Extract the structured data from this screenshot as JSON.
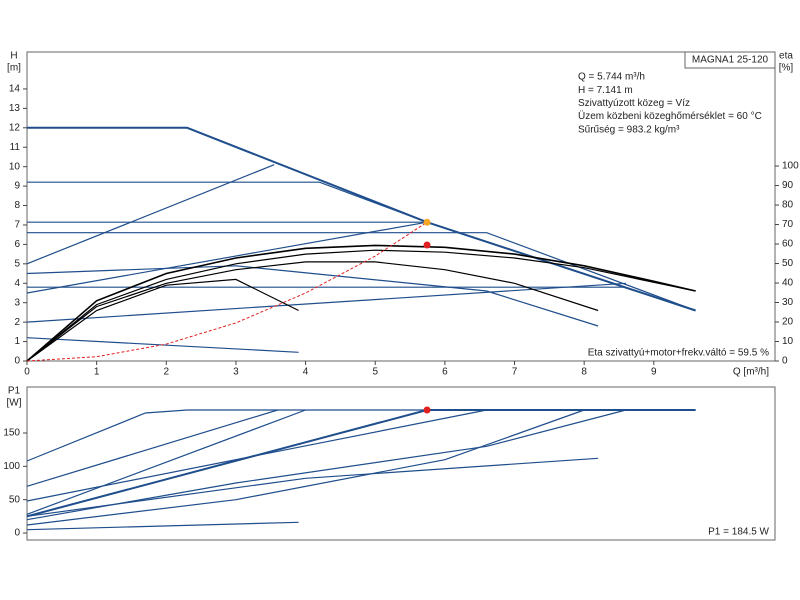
{
  "chart_data": [
    {
      "type": "line",
      "ylabel": [
        "H",
        "[m]"
      ],
      "y2label": [
        "eta",
        "[%]"
      ],
      "xlabel": "Q [m³/h]",
      "box_label": "MAGNA1 25-120",
      "info": [
        "Q = 5.744 m³/h",
        "H = 7.141 m",
        "Szivattyúzott közeg = Víz",
        "Üzem közbeni közeghőmérséklet = 60 °C",
        "Sűrűség = 983.2 kg/m³"
      ],
      "note": "Eta szivattyú+motor+frekv.váltó = 59.5 %",
      "xlim": [
        0,
        10.74
      ],
      "xticks": [
        0,
        1,
        2,
        3,
        4,
        5,
        6,
        7,
        8,
        9
      ],
      "ylim": [
        0,
        15.9
      ],
      "yticks": [
        0,
        1,
        2,
        3,
        4,
        5,
        6,
        7,
        8,
        9,
        10,
        11,
        12,
        13,
        14
      ],
      "y2lim": [
        0,
        158.5
      ],
      "y2ticks": [
        0,
        10,
        20,
        30,
        40,
        50,
        60,
        70,
        80,
        90,
        100
      ],
      "series": [
        {
          "color": "#1f4e8c",
          "width": 2,
          "x": [
            0,
            2.3,
            5.744,
            9.6
          ],
          "values": [
            12,
            12,
            7.141,
            2.6
          ]
        },
        {
          "color": "#1f4e8c",
          "width": 1.2,
          "x": [
            0,
            4.2,
            5.744
          ],
          "values": [
            9.2,
            9.2,
            7.141
          ]
        },
        {
          "color": "#1f4e8c",
          "width": 1.2,
          "x": [
            0,
            5.744
          ],
          "values": [
            7.141,
            7.141
          ]
        },
        {
          "color": "#1f4e8c",
          "width": 1.2,
          "x": [
            0,
            6.6,
            9.6
          ],
          "values": [
            6.6,
            6.6,
            2.6
          ]
        },
        {
          "color": "#1f4e8c",
          "width": 1.2,
          "x": [
            0,
            3.55
          ],
          "values": [
            5,
            10.1
          ]
        },
        {
          "color": "#1f4e8c",
          "width": 1.2,
          "x": [
            0,
            5.744
          ],
          "values": [
            3.5,
            7.141
          ]
        },
        {
          "color": "#1f4e8c",
          "width": 1.2,
          "x": [
            0,
            3,
            6.6,
            8.2
          ],
          "values": [
            4.5,
            4.9,
            3.6,
            1.8
          ]
        },
        {
          "color": "#1f4e8c",
          "width": 1.2,
          "x": [
            0,
            8.6
          ],
          "values": [
            3.8,
            3.8
          ]
        },
        {
          "color": "#1f4e8c",
          "width": 1.2,
          "x": [
            0,
            8.6
          ],
          "values": [
            2,
            4
          ]
        },
        {
          "color": "#1f4e8c",
          "width": 1.2,
          "x": [
            0,
            3.9
          ],
          "values": [
            1.2,
            0.45
          ]
        },
        {
          "color": "#000000",
          "width": 1.6,
          "x": [
            0,
            1,
            2,
            3,
            4,
            5,
            6,
            7,
            8,
            9,
            9.6
          ],
          "values": [
            0,
            3.1,
            4.5,
            5.3,
            5.8,
            5.95,
            5.85,
            5.5,
            4.9,
            4.1,
            3.6
          ]
        },
        {
          "color": "#000000",
          "width": 1.2,
          "x": [
            0,
            1,
            2,
            3,
            4,
            5,
            6,
            7,
            8,
            9.6
          ],
          "values": [
            0,
            2.9,
            4.2,
            5.0,
            5.5,
            5.7,
            5.6,
            5.3,
            4.8,
            3.6
          ]
        },
        {
          "color": "#000000",
          "width": 1.2,
          "x": [
            0,
            1,
            2,
            3,
            4,
            5,
            6,
            7,
            8.2
          ],
          "values": [
            0,
            2.8,
            4.0,
            4.7,
            5.1,
            5.1,
            4.7,
            4.0,
            2.6
          ]
        },
        {
          "color": "#000000",
          "width": 1.2,
          "x": [
            0,
            1,
            2,
            3,
            3.9
          ],
          "values": [
            0,
            2.6,
            3.9,
            4.2,
            2.6
          ]
        },
        {
          "color": "#e02020",
          "width": 1,
          "dash": true,
          "x": [
            0,
            1,
            2,
            3,
            4,
            5,
            5.744
          ],
          "values": [
            0,
            0.22,
            0.87,
            1.96,
            3.5,
            5.4,
            7.141
          ]
        },
        {
          "color": "#f5a623",
          "marker": true,
          "x": [
            5.744
          ],
          "values": [
            7.141
          ]
        },
        {
          "color": "#e02020",
          "marker": true,
          "axis": "y2",
          "x": [
            5.744
          ],
          "values": [
            59.5
          ]
        }
      ]
    },
    {
      "type": "line",
      "ylabel": [
        "P1",
        "[W]"
      ],
      "note": "P1 = 184.5 W",
      "xlim": [
        0,
        10.74
      ],
      "ylim": [
        -10.5,
        219
      ],
      "yticks": [
        0,
        50,
        100,
        150
      ],
      "series": [
        {
          "color": "#1f4e8c",
          "width": 2,
          "x": [
            0,
            5.744,
            9.6
          ],
          "values": [
            25,
            184.5,
            184.5
          ]
        },
        {
          "color": "#1f4e8c",
          "width": 1.2,
          "x": [
            0,
            1.7,
            2.3,
            9.6
          ],
          "values": [
            108,
            180,
            184.5,
            184.5
          ]
        },
        {
          "color": "#1f4e8c",
          "width": 1.2,
          "x": [
            0,
            3.6
          ],
          "values": [
            70,
            184.5
          ]
        },
        {
          "color": "#1f4e8c",
          "width": 1.2,
          "x": [
            0,
            4.0
          ],
          "values": [
            28,
            184.5
          ]
        },
        {
          "color": "#1f4e8c",
          "width": 1.2,
          "x": [
            0,
            6.6
          ],
          "values": [
            48,
            184.5
          ]
        },
        {
          "color": "#1f4e8c",
          "width": 1.2,
          "x": [
            0,
            3,
            6.6,
            8.6
          ],
          "values": [
            20,
            75,
            130,
            184.5
          ]
        },
        {
          "color": "#1f4e8c",
          "width": 1.2,
          "x": [
            0,
            3,
            6,
            8.0
          ],
          "values": [
            12,
            50,
            110,
            184.5
          ]
        },
        {
          "color": "#1f4e8c",
          "width": 1.2,
          "x": [
            0,
            4,
            8.2
          ],
          "values": [
            25,
            82,
            112
          ]
        },
        {
          "color": "#1f4e8c",
          "width": 1.2,
          "x": [
            0,
            3.9
          ],
          "values": [
            5,
            16
          ]
        },
        {
          "color": "#e02020",
          "marker": true,
          "x": [
            5.744
          ],
          "values": [
            184.5
          ]
        }
      ]
    }
  ]
}
